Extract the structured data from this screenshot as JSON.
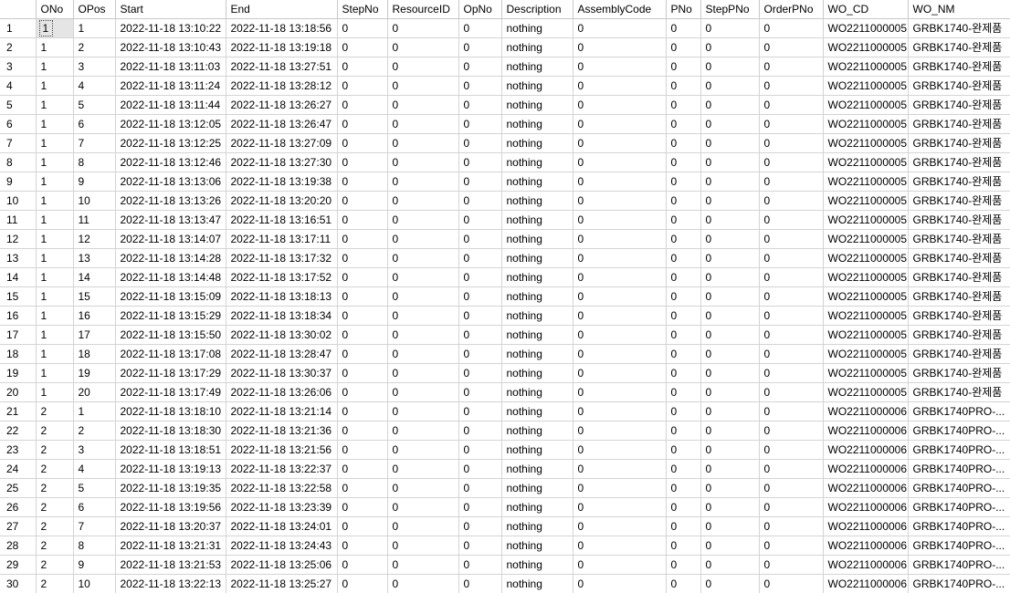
{
  "grid": {
    "columns": [
      "",
      "ONo",
      "OPos",
      "Start",
      "End",
      "StepNo",
      "ResourceID",
      "OpNo",
      "Description",
      "AssemblyCode",
      "PNo",
      "StepPNo",
      "OrderPNo",
      "WO_CD",
      "WO_NM"
    ],
    "rows": [
      [
        "1",
        "1",
        "1",
        "2022-11-18 13:10:22",
        "2022-11-18 13:18:56",
        "0",
        "0",
        "0",
        "nothing",
        "0",
        "0",
        "0",
        "0",
        "WO2211000005",
        "GRBK1740-완제품"
      ],
      [
        "2",
        "1",
        "2",
        "2022-11-18 13:10:43",
        "2022-11-18 13:19:18",
        "0",
        "0",
        "0",
        "nothing",
        "0",
        "0",
        "0",
        "0",
        "WO2211000005",
        "GRBK1740-완제품"
      ],
      [
        "3",
        "1",
        "3",
        "2022-11-18 13:11:03",
        "2022-11-18 13:27:51",
        "0",
        "0",
        "0",
        "nothing",
        "0",
        "0",
        "0",
        "0",
        "WO2211000005",
        "GRBK1740-완제품"
      ],
      [
        "4",
        "1",
        "4",
        "2022-11-18 13:11:24",
        "2022-11-18 13:28:12",
        "0",
        "0",
        "0",
        "nothing",
        "0",
        "0",
        "0",
        "0",
        "WO2211000005",
        "GRBK1740-완제품"
      ],
      [
        "5",
        "1",
        "5",
        "2022-11-18 13:11:44",
        "2022-11-18 13:26:27",
        "0",
        "0",
        "0",
        "nothing",
        "0",
        "0",
        "0",
        "0",
        "WO2211000005",
        "GRBK1740-완제품"
      ],
      [
        "6",
        "1",
        "6",
        "2022-11-18 13:12:05",
        "2022-11-18 13:26:47",
        "0",
        "0",
        "0",
        "nothing",
        "0",
        "0",
        "0",
        "0",
        "WO2211000005",
        "GRBK1740-완제품"
      ],
      [
        "7",
        "1",
        "7",
        "2022-11-18 13:12:25",
        "2022-11-18 13:27:09",
        "0",
        "0",
        "0",
        "nothing",
        "0",
        "0",
        "0",
        "0",
        "WO2211000005",
        "GRBK1740-완제품"
      ],
      [
        "8",
        "1",
        "8",
        "2022-11-18 13:12:46",
        "2022-11-18 13:27:30",
        "0",
        "0",
        "0",
        "nothing",
        "0",
        "0",
        "0",
        "0",
        "WO2211000005",
        "GRBK1740-완제품"
      ],
      [
        "9",
        "1",
        "9",
        "2022-11-18 13:13:06",
        "2022-11-18 13:19:38",
        "0",
        "0",
        "0",
        "nothing",
        "0",
        "0",
        "0",
        "0",
        "WO2211000005",
        "GRBK1740-완제품"
      ],
      [
        "10",
        "1",
        "10",
        "2022-11-18 13:13:26",
        "2022-11-18 13:20:20",
        "0",
        "0",
        "0",
        "nothing",
        "0",
        "0",
        "0",
        "0",
        "WO2211000005",
        "GRBK1740-완제품"
      ],
      [
        "11",
        "1",
        "11",
        "2022-11-18 13:13:47",
        "2022-11-18 13:16:51",
        "0",
        "0",
        "0",
        "nothing",
        "0",
        "0",
        "0",
        "0",
        "WO2211000005",
        "GRBK1740-완제품"
      ],
      [
        "12",
        "1",
        "12",
        "2022-11-18 13:14:07",
        "2022-11-18 13:17:11",
        "0",
        "0",
        "0",
        "nothing",
        "0",
        "0",
        "0",
        "0",
        "WO2211000005",
        "GRBK1740-완제품"
      ],
      [
        "13",
        "1",
        "13",
        "2022-11-18 13:14:28",
        "2022-11-18 13:17:32",
        "0",
        "0",
        "0",
        "nothing",
        "0",
        "0",
        "0",
        "0",
        "WO2211000005",
        "GRBK1740-완제품"
      ],
      [
        "14",
        "1",
        "14",
        "2022-11-18 13:14:48",
        "2022-11-18 13:17:52",
        "0",
        "0",
        "0",
        "nothing",
        "0",
        "0",
        "0",
        "0",
        "WO2211000005",
        "GRBK1740-완제품"
      ],
      [
        "15",
        "1",
        "15",
        "2022-11-18 13:15:09",
        "2022-11-18 13:18:13",
        "0",
        "0",
        "0",
        "nothing",
        "0",
        "0",
        "0",
        "0",
        "WO2211000005",
        "GRBK1740-완제품"
      ],
      [
        "16",
        "1",
        "16",
        "2022-11-18 13:15:29",
        "2022-11-18 13:18:34",
        "0",
        "0",
        "0",
        "nothing",
        "0",
        "0",
        "0",
        "0",
        "WO2211000005",
        "GRBK1740-완제품"
      ],
      [
        "17",
        "1",
        "17",
        "2022-11-18 13:15:50",
        "2022-11-18 13:30:02",
        "0",
        "0",
        "0",
        "nothing",
        "0",
        "0",
        "0",
        "0",
        "WO2211000005",
        "GRBK1740-완제품"
      ],
      [
        "18",
        "1",
        "18",
        "2022-11-18 13:17:08",
        "2022-11-18 13:28:47",
        "0",
        "0",
        "0",
        "nothing",
        "0",
        "0",
        "0",
        "0",
        "WO2211000005",
        "GRBK1740-완제품"
      ],
      [
        "19",
        "1",
        "19",
        "2022-11-18 13:17:29",
        "2022-11-18 13:30:37",
        "0",
        "0",
        "0",
        "nothing",
        "0",
        "0",
        "0",
        "0",
        "WO2211000005",
        "GRBK1740-완제품"
      ],
      [
        "20",
        "1",
        "20",
        "2022-11-18 13:17:49",
        "2022-11-18 13:26:06",
        "0",
        "0",
        "0",
        "nothing",
        "0",
        "0",
        "0",
        "0",
        "WO2211000005",
        "GRBK1740-완제품"
      ],
      [
        "21",
        "2",
        "1",
        "2022-11-18 13:18:10",
        "2022-11-18 13:21:14",
        "0",
        "0",
        "0",
        "nothing",
        "0",
        "0",
        "0",
        "0",
        "WO2211000006",
        "GRBK1740PRO-..."
      ],
      [
        "22",
        "2",
        "2",
        "2022-11-18 13:18:30",
        "2022-11-18 13:21:36",
        "0",
        "0",
        "0",
        "nothing",
        "0",
        "0",
        "0",
        "0",
        "WO2211000006",
        "GRBK1740PRO-..."
      ],
      [
        "23",
        "2",
        "3",
        "2022-11-18 13:18:51",
        "2022-11-18 13:21:56",
        "0",
        "0",
        "0",
        "nothing",
        "0",
        "0",
        "0",
        "0",
        "WO2211000006",
        "GRBK1740PRO-..."
      ],
      [
        "24",
        "2",
        "4",
        "2022-11-18 13:19:13",
        "2022-11-18 13:22:37",
        "0",
        "0",
        "0",
        "nothing",
        "0",
        "0",
        "0",
        "0",
        "WO2211000006",
        "GRBK1740PRO-..."
      ],
      [
        "25",
        "2",
        "5",
        "2022-11-18 13:19:35",
        "2022-11-18 13:22:58",
        "0",
        "0",
        "0",
        "nothing",
        "0",
        "0",
        "0",
        "0",
        "WO2211000006",
        "GRBK1740PRO-..."
      ],
      [
        "26",
        "2",
        "6",
        "2022-11-18 13:19:56",
        "2022-11-18 13:23:39",
        "0",
        "0",
        "0",
        "nothing",
        "0",
        "0",
        "0",
        "0",
        "WO2211000006",
        "GRBK1740PRO-..."
      ],
      [
        "27",
        "2",
        "7",
        "2022-11-18 13:20:37",
        "2022-11-18 13:24:01",
        "0",
        "0",
        "0",
        "nothing",
        "0",
        "0",
        "0",
        "0",
        "WO2211000006",
        "GRBK1740PRO-..."
      ],
      [
        "28",
        "2",
        "8",
        "2022-11-18 13:21:31",
        "2022-11-18 13:24:43",
        "0",
        "0",
        "0",
        "nothing",
        "0",
        "0",
        "0",
        "0",
        "WO2211000006",
        "GRBK1740PRO-..."
      ],
      [
        "29",
        "2",
        "9",
        "2022-11-18 13:21:53",
        "2022-11-18 13:25:06",
        "0",
        "0",
        "0",
        "nothing",
        "0",
        "0",
        "0",
        "0",
        "WO2211000006",
        "GRBK1740PRO-..."
      ],
      [
        "30",
        "2",
        "10",
        "2022-11-18 13:22:13",
        "2022-11-18 13:25:27",
        "0",
        "0",
        "0",
        "nothing",
        "0",
        "0",
        "0",
        "0",
        "WO2211000006",
        "GRBK1740PRO-..."
      ]
    ]
  }
}
